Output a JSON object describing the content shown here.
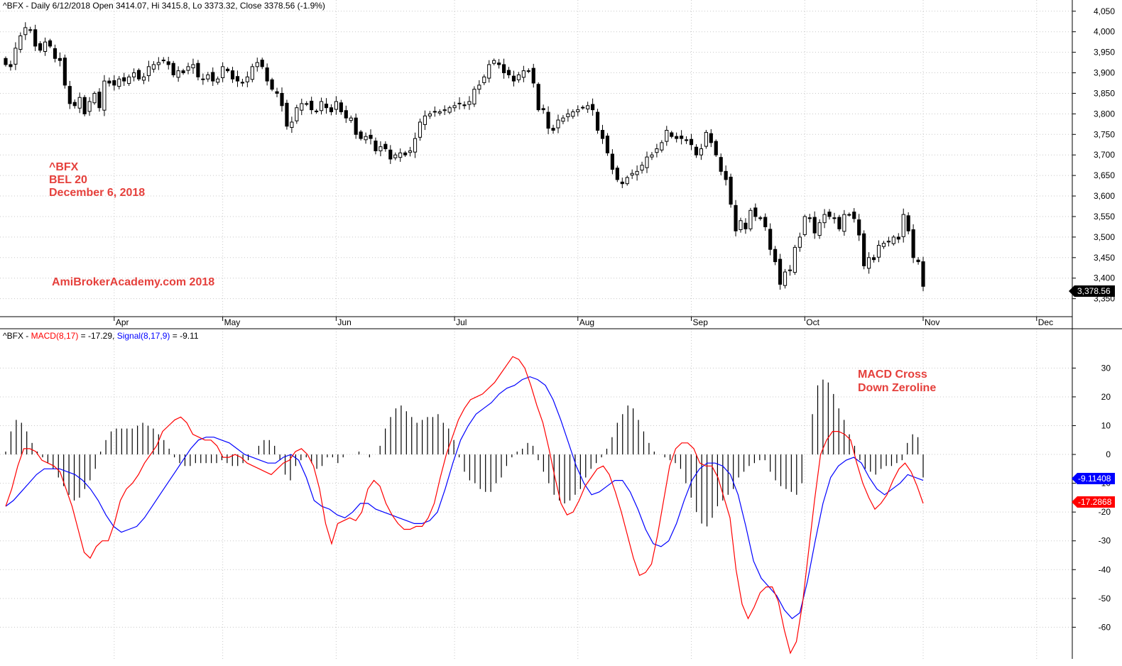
{
  "price_header": {
    "symbol": "^BFX",
    "text": "^BFX - Daily 6/12/2018 Open 3414.07, Hi 3415.8, Lo 3373.32, Close 3378.56 (-1.9%)"
  },
  "macd_header": {
    "prefix": "^BFX - ",
    "macd_label": "MACD(8,17)",
    "macd_value": " = -17.29, ",
    "signal_label": "Signal(8,17,9)",
    "signal_value": " = -9.11"
  },
  "annotations": {
    "line1": "^BFX",
    "line2": "BEL 20",
    "line3": "December 6, 2018",
    "watermark": "AmiBrokerAcademy.com  2018",
    "macd_note_1": "MACD Cross",
    "macd_note_2": "Down Zeroline"
  },
  "tags": {
    "last_close": "3,378.56",
    "signal_last": "-9.11408",
    "macd_last": "-17.2868"
  },
  "colors": {
    "macd": "#ff0000",
    "signal": "#0000ff",
    "histogram": "#000000",
    "annotation": "#e5403c",
    "grid": "#c8c8c8"
  },
  "chart_data": [
    {
      "type": "candlestick",
      "title": "^BFX - Daily 6/12/2018 Open 3414.07, Hi 3415.8, Lo 3373.32, Close 3378.56 (-1.9%)",
      "y_ticks": [
        3350,
        3400,
        3450,
        3500,
        3550,
        3600,
        3650,
        3700,
        3750,
        3800,
        3850,
        3900,
        3950,
        4000,
        4050
      ],
      "y_tick_labels": [
        "3,350",
        "3,400",
        "3,450",
        "3,500",
        "3,550",
        "3,600",
        "3,650",
        "3,700",
        "3,750",
        "3,800",
        "3,850",
        "3,900",
        "3,950",
        "4,000",
        "4,050"
      ],
      "ylim": [
        3320,
        4060
      ],
      "months": [
        "Apr",
        "May",
        "Jun",
        "Jul",
        "Aug",
        "Sep",
        "Oct",
        "Nov",
        "Dec"
      ],
      "month_start_index": [
        22,
        44,
        67,
        91,
        116,
        139,
        162,
        186,
        209
      ],
      "grid": true,
      "close": [
        3920,
        3915,
        3960,
        3990,
        4010,
        4005,
        3965,
        3955,
        3975,
        3965,
        3935,
        3930,
        3870,
        3825,
        3820,
        3840,
        3800,
        3830,
        3850,
        3815,
        3880,
        3875,
        3870,
        3885,
        3880,
        3890,
        3900,
        3885,
        3890,
        3915,
        3920,
        3925,
        3930,
        3920,
        3895,
        3905,
        3900,
        3915,
        3920,
        3890,
        3885,
        3895,
        3880,
        3885,
        3915,
        3905,
        3885,
        3880,
        3875,
        3890,
        3915,
        3925,
        3915,
        3880,
        3860,
        3850,
        3820,
        3770,
        3780,
        3815,
        3825,
        3825,
        3810,
        3805,
        3830,
        3815,
        3805,
        3830,
        3805,
        3790,
        3790,
        3750,
        3740,
        3745,
        3740,
        3710,
        3720,
        3715,
        3690,
        3700,
        3705,
        3700,
        3710,
        3740,
        3780,
        3795,
        3800,
        3805,
        3805,
        3810,
        3815,
        3820,
        3825,
        3820,
        3830,
        3860,
        3870,
        3890,
        3920,
        3930,
        3920,
        3900,
        3895,
        3880,
        3895,
        3905,
        3905,
        3875,
        3810,
        3810,
        3765,
        3760,
        3785,
        3790,
        3800,
        3805,
        3810,
        3815,
        3820,
        3810,
        3760,
        3740,
        3705,
        3665,
        3640,
        3630,
        3645,
        3655,
        3660,
        3675,
        3695,
        3700,
        3715,
        3730,
        3760,
        3745,
        3740,
        3740,
        3735,
        3725,
        3700,
        3715,
        3755,
        3730,
        3700,
        3660,
        3640,
        3580,
        3515,
        3540,
        3520,
        3565,
        3550,
        3545,
        3525,
        3470,
        3440,
        3385,
        3415,
        3420,
        3475,
        3500,
        3550,
        3545,
        3510,
        3535,
        3555,
        3550,
        3545,
        3520,
        3555,
        3555,
        3545,
        3505,
        3430,
        3450,
        3445,
        3480,
        3485,
        3490,
        3500,
        3495,
        3555,
        3515,
        3450,
        3440,
        3380
      ]
    },
    {
      "type": "line",
      "title": "^BFX - MACD(8,17) = -17.29, Signal(8,17,9) = -9.11",
      "y_ticks": [
        -60,
        -50,
        -40,
        -30,
        -20,
        -10,
        0,
        10,
        20,
        30
      ],
      "ylim": [
        -71,
        37
      ],
      "grid": true,
      "series": [
        {
          "name": "MACD(8,17)",
          "values": [
            -18,
            -12,
            -4,
            2,
            2,
            1,
            -2,
            -3,
            -4,
            -6,
            -12,
            -18,
            -26,
            -34,
            -36,
            -32,
            -30,
            -30,
            -24,
            -16,
            -12,
            -10,
            -7,
            -3,
            0,
            3,
            8,
            10,
            12,
            13,
            11,
            7,
            6,
            5,
            5,
            3,
            -1,
            -1,
            0,
            -1,
            -3,
            -4,
            -5,
            -6,
            -7,
            -5,
            -3,
            -2,
            1,
            2,
            0,
            -4,
            -12,
            -24,
            -31,
            -24,
            -23,
            -22,
            -23,
            -20,
            -12,
            -9,
            -11,
            -17,
            -21,
            -24,
            -26,
            -26,
            -25,
            -25,
            -22,
            -17,
            -8,
            0,
            6,
            12,
            16,
            19,
            20,
            21,
            23,
            25,
            28,
            31,
            34,
            33,
            30,
            24,
            17,
            11,
            2,
            -8,
            -17,
            -21,
            -20,
            -16,
            -11,
            -8,
            -5,
            -4,
            -7,
            -13,
            -20,
            -28,
            -36,
            -42,
            -41,
            -38,
            -28,
            -16,
            -4,
            2,
            4,
            4,
            2,
            -3,
            -4,
            -4,
            -8,
            -15,
            -22,
            -40,
            -52,
            -57,
            -53,
            -48,
            -46,
            -46,
            -51,
            -61,
            -69,
            -65,
            -52,
            -34,
            -16,
            0,
            5,
            8,
            8,
            7,
            5,
            -3,
            -10,
            -15,
            -19,
            -17,
            -14,
            -9,
            -5,
            -3,
            -6,
            -11,
            -17
          ]
        },
        {
          "name": "Signal(8,17,9)",
          "values": [
            -18,
            -16,
            -13,
            -10,
            -7,
            -5,
            -5,
            -5,
            -6,
            -7,
            -9,
            -12,
            -16,
            -21,
            -25,
            -27,
            -26,
            -25,
            -22,
            -18,
            -14,
            -10,
            -6,
            -2,
            2,
            5,
            6,
            6,
            5,
            4,
            2,
            0,
            -1,
            -2,
            -3,
            -3,
            -1,
            0,
            -2,
            -8,
            -16,
            -18,
            -19,
            -21,
            -22,
            -20,
            -17,
            -17,
            -19,
            -20,
            -21,
            -22,
            -23,
            -24,
            -24,
            -23,
            -20,
            -12,
            -3,
            5,
            10,
            14,
            16,
            18,
            21,
            23,
            24,
            26,
            27,
            26,
            24,
            19,
            12,
            4,
            -4,
            -10,
            -14,
            -13,
            -11,
            -9,
            -9,
            -13,
            -19,
            -26,
            -31,
            -32,
            -30,
            -24,
            -16,
            -9,
            -5,
            -3,
            -3,
            -4,
            -7,
            -14,
            -25,
            -37,
            -43,
            -46,
            -49,
            -54,
            -57,
            -55,
            -44,
            -30,
            -17,
            -8,
            -4,
            -2,
            -1,
            -3,
            -8,
            -12,
            -14,
            -12,
            -10,
            -7,
            -8,
            -9
          ]
        },
        {
          "name": "Histogram",
          "values": [
            1,
            8,
            12,
            11,
            8,
            4,
            1,
            -1,
            -3,
            -5,
            -8,
            -11,
            -14,
            -16,
            -15,
            -12,
            -9,
            -5,
            1,
            5,
            8,
            9,
            9,
            9,
            9,
            10,
            11,
            10,
            9,
            7,
            5,
            2,
            -1,
            -3,
            -4,
            -4,
            -3,
            -3,
            -3,
            -3,
            -3,
            -2,
            -3,
            -4,
            -4,
            -3,
            -2,
            0,
            3,
            5,
            5,
            3,
            -2,
            -7,
            -9,
            -4,
            -2,
            -1,
            -3,
            -5,
            -4,
            -1,
            -1,
            -3,
            -1,
            0,
            0,
            1,
            0,
            -1,
            0,
            3,
            9,
            13,
            16,
            17,
            15,
            13,
            11,
            12,
            13,
            13,
            14,
            11,
            9,
            5,
            -1,
            -6,
            -9,
            -10,
            -12,
            -13,
            -13,
            -10,
            -8,
            -4,
            -1,
            1,
            2,
            4,
            3,
            -2,
            -6,
            -10,
            -14,
            -16,
            -17,
            -16,
            -14,
            -12,
            -8,
            -5,
            -3,
            -1,
            2,
            6,
            11,
            14,
            17,
            16,
            12,
            8,
            4,
            1,
            0,
            -1,
            -2,
            -3,
            -5,
            -10,
            -15,
            -20,
            -24,
            -25,
            -22,
            -18,
            -16,
            -14,
            -12,
            -8,
            -6,
            -4,
            -3,
            -2,
            -2,
            -6,
            -9,
            -11,
            -12,
            -13,
            -14,
            -10,
            0,
            14,
            24,
            26,
            25,
            21,
            16,
            12,
            7,
            3,
            -2,
            -5,
            -6,
            -7,
            -5,
            -4,
            -4,
            -3,
            -2,
            4,
            7,
            6,
            -8
          ]
        }
      ]
    }
  ]
}
